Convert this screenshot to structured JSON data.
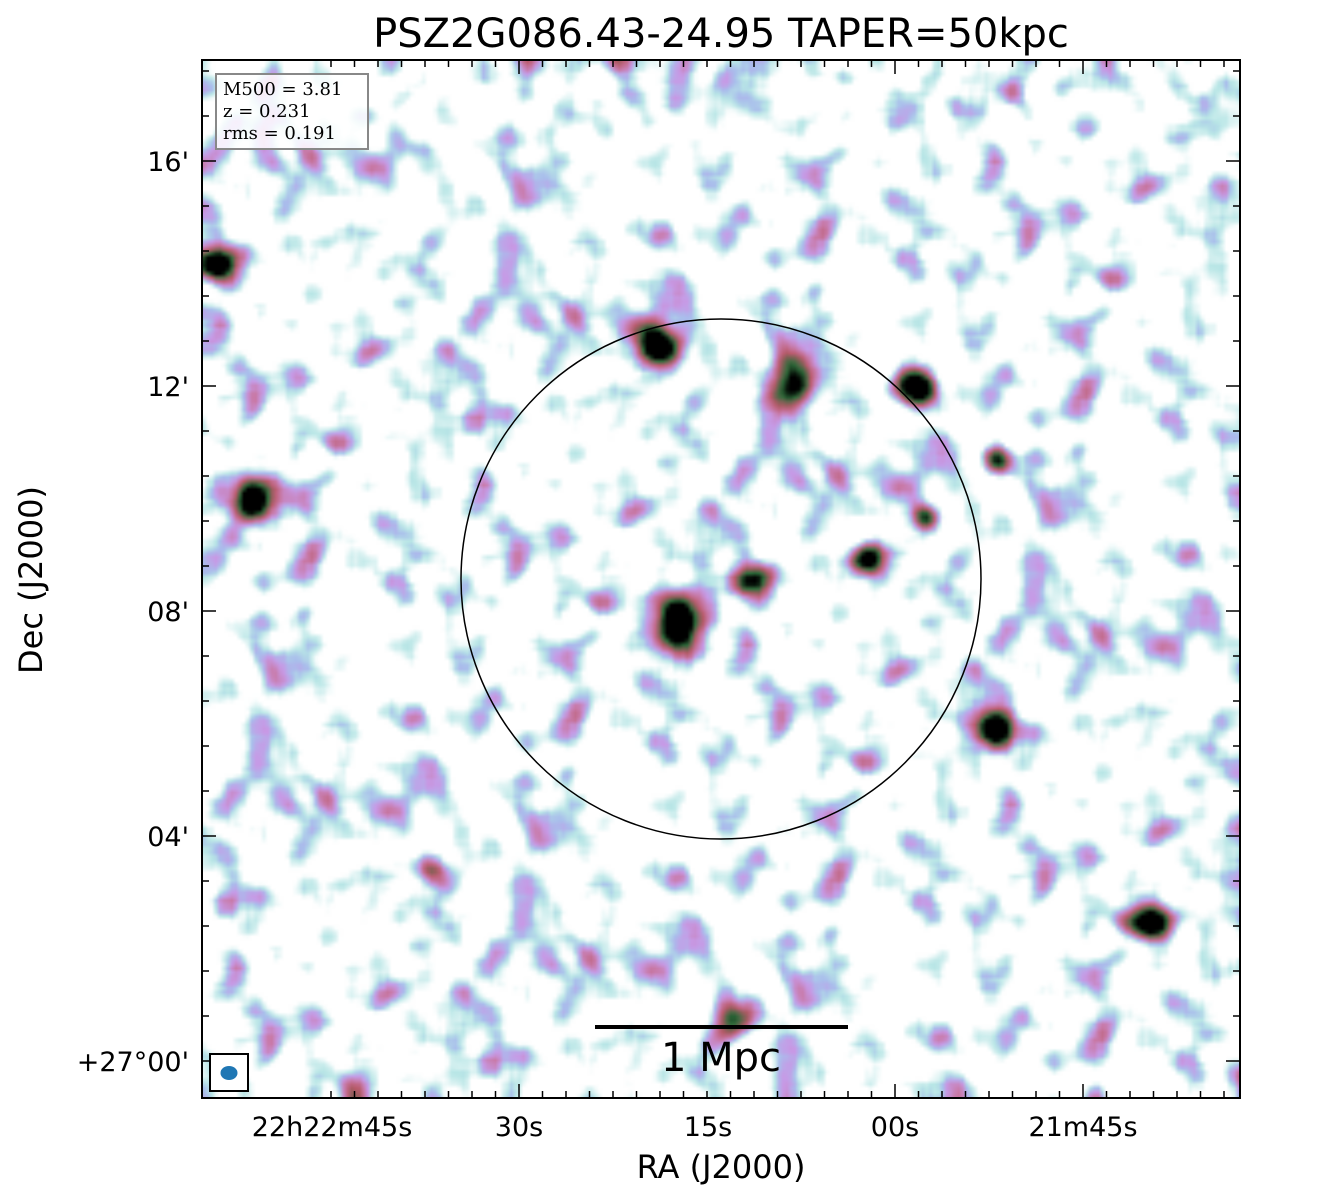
{
  "chart_data": {
    "type": "heatmap",
    "title": "PSZ2G086.43-24.95 TAPER=50kpc",
    "xlabel": "RA (J2000)",
    "ylabel": "Dec (J2000)",
    "x_ticks": [
      "22h22m45s",
      "30s",
      "15s",
      "00s",
      "21m45s"
    ],
    "y_ticks": [
      "16'",
      "12'",
      "08'",
      "04'",
      "+27°00'"
    ],
    "info_box": {
      "mass": "M500 = 3.81",
      "redshift": "z = 0.231",
      "rms": "rms = 0.191"
    },
    "scale_bar": {
      "label": "1 Mpc"
    },
    "r500_circle": {
      "shown": true,
      "color": "#000000"
    },
    "beam": {
      "shown": true,
      "color": "#1f77b4",
      "position": "bottom-left"
    },
    "colormap": [
      "#ffffff",
      "#b8e6e6",
      "#a9bdec",
      "#c79ae6",
      "#c87aa8",
      "#b95a6a",
      "#2e6b3a",
      "#000000"
    ],
    "sources": [
      {
        "name": "central-source",
        "x": 0.455,
        "y": 0.54,
        "r": 0.019,
        "peak": 1.0
      },
      {
        "name": "north-source",
        "x": 0.44,
        "y": 0.275,
        "r": 0.015,
        "peak": 1.0
      },
      {
        "name": "west-edge-source",
        "x": 0.045,
        "y": 0.42,
        "r": 0.016,
        "peak": 1.0
      },
      {
        "name": "se-source-1",
        "x": 0.76,
        "y": 0.64,
        "r": 0.012,
        "peak": 0.95
      },
      {
        "name": "se-source-2",
        "x": 0.915,
        "y": 0.83,
        "r": 0.013,
        "peak": 0.95
      },
      {
        "name": "ne-source-1",
        "x": 0.57,
        "y": 0.31,
        "r": 0.016,
        "peak": 0.8
      },
      {
        "name": "ne-source-2",
        "x": 0.685,
        "y": 0.31,
        "r": 0.013,
        "peak": 0.85
      },
      {
        "name": "e-source-1",
        "x": 0.64,
        "y": 0.48,
        "r": 0.011,
        "peak": 0.8
      },
      {
        "name": "e-source-2",
        "x": 0.695,
        "y": 0.44,
        "r": 0.009,
        "peak": 0.75
      },
      {
        "name": "e-source-3",
        "x": 0.763,
        "y": 0.384,
        "r": 0.01,
        "peak": 0.7
      },
      {
        "name": "nw-source",
        "x": 0.016,
        "y": 0.197,
        "r": 0.011,
        "peak": 0.8
      },
      {
        "name": "cluster-source",
        "x": 0.53,
        "y": 0.502,
        "r": 0.011,
        "peak": 0.6
      },
      {
        "name": "s-source",
        "x": 0.51,
        "y": 0.924,
        "r": 0.015,
        "peak": 0.55
      },
      {
        "name": "sw-source",
        "x": 0.218,
        "y": 0.778,
        "r": 0.01,
        "peak": 0.6
      }
    ]
  }
}
